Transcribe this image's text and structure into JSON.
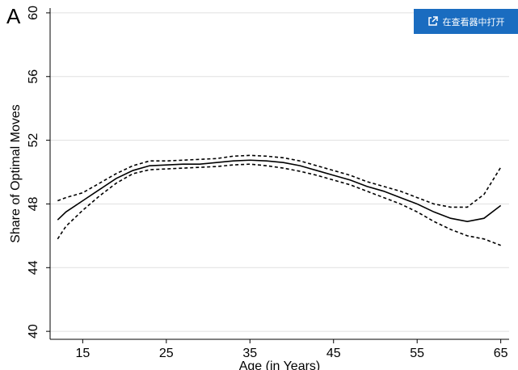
{
  "chart_data": {
    "type": "line",
    "panel_label": "A",
    "y_label": "Share of Optimal Moves",
    "x_label": "Age (in Years)",
    "button": "在查看器中打开",
    "x": [
      12,
      13,
      15,
      17,
      19,
      21,
      23,
      25,
      27,
      29,
      31,
      33,
      35,
      37,
      39,
      41,
      43,
      45,
      47,
      49,
      51,
      53,
      55,
      57,
      59,
      61,
      63,
      65
    ],
    "series": [
      {
        "color": "#000000",
        "dashed": false,
        "values": [
          47.0,
          47.5,
          48.2,
          48.9,
          49.6,
          50.1,
          50.4,
          50.45,
          50.5,
          50.5,
          50.6,
          50.7,
          50.75,
          50.7,
          50.6,
          50.4,
          50.1,
          49.8,
          49.5,
          49.1,
          48.8,
          48.4,
          48.0,
          47.5,
          47.1,
          46.9,
          47.1,
          47.9
        ]
      },
      {
        "color": "#000000",
        "dashed": true,
        "values": [
          48.2,
          48.4,
          48.7,
          49.3,
          49.9,
          50.4,
          50.7,
          50.7,
          50.75,
          50.8,
          50.85,
          51.0,
          51.05,
          51.0,
          50.9,
          50.7,
          50.4,
          50.1,
          49.8,
          49.4,
          49.1,
          48.8,
          48.4,
          48.0,
          47.8,
          47.8,
          48.6,
          50.3
        ]
      },
      {
        "color": "#000000",
        "dashed": true,
        "values": [
          45.8,
          46.6,
          47.6,
          48.5,
          49.3,
          49.9,
          50.15,
          50.2,
          50.25,
          50.3,
          50.35,
          50.45,
          50.5,
          50.4,
          50.25,
          50.05,
          49.8,
          49.5,
          49.2,
          48.8,
          48.4,
          48.0,
          47.5,
          46.9,
          46.4,
          46.0,
          45.8,
          45.4
        ]
      }
    ],
    "xlim": [
      11.1,
      66
    ],
    "xticks": [
      15,
      25,
      35,
      45,
      55,
      65
    ],
    "ylim": [
      39.5,
      60.3
    ],
    "yticks": [
      40,
      44,
      48,
      52,
      56,
      60
    ],
    "grid": true
  }
}
